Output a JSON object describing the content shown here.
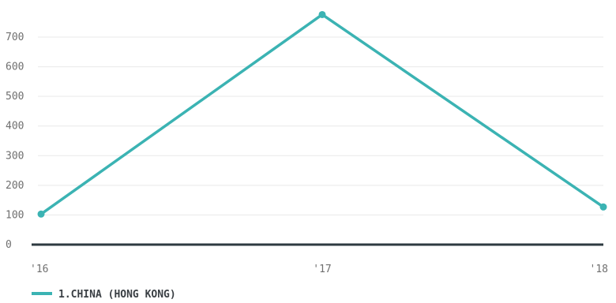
{
  "chart_data": {
    "type": "line",
    "x": [
      "'16",
      "'17",
      "'18"
    ],
    "series": [
      {
        "name": "1.CHINA (HONG KONG)",
        "values": [
          103,
          776,
          127
        ],
        "color": "#3bb3b3"
      }
    ],
    "y_ticks": [
      0,
      100,
      200,
      300,
      400,
      500,
      600,
      700
    ],
    "ylim": [
      0,
      800
    ],
    "grid": true,
    "legend_position": "bottom-left",
    "title": "",
    "xlabel": "",
    "ylabel": ""
  }
}
